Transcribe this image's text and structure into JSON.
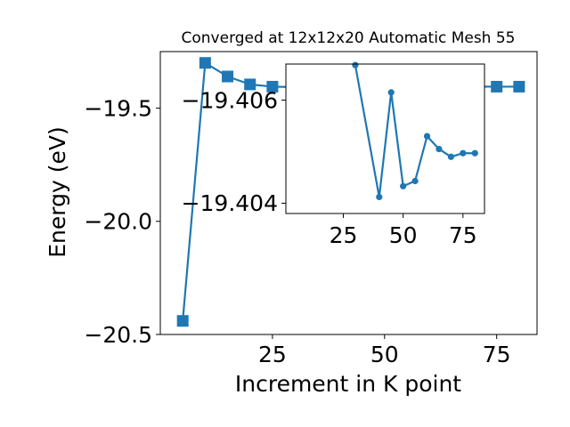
{
  "chart_data": [
    {
      "type": "line",
      "title": "Converged at 12x12x20 Automatic Mesh 55",
      "xlabel": "Increment in K point",
      "ylabel": "Energy (eV)",
      "xlim": [
        0,
        84
      ],
      "ylim": [
        -20.5,
        -19.25
      ],
      "xticks": [
        25,
        50,
        75
      ],
      "yticks": [
        -20.5,
        -20.0,
        -19.5
      ],
      "ytick_labels": [
        "−20.5",
        "−20.0",
        "−19.5"
      ],
      "grid": false,
      "marker": "square",
      "color": "#1f77b4",
      "series": [
        {
          "x": [
            5,
            10,
            15,
            20,
            25,
            30,
            35,
            40,
            45,
            50,
            55,
            60,
            65,
            70,
            75,
            80
          ],
          "y": [
            -20.44,
            -19.3,
            -19.36,
            -19.395,
            -19.405,
            -19.4066,
            -19.4066,
            -19.4041,
            -19.4061,
            -19.4043,
            -19.4044,
            -19.4053,
            -19.4051,
            -19.4049,
            -19.405,
            -19.405
          ]
        }
      ]
    },
    {
      "type": "line",
      "title": "",
      "xlabel": "",
      "ylabel": "",
      "xlim": [
        1,
        84
      ],
      "ylim": [
        -19.4038,
        -19.4067
      ],
      "xticks": [
        25,
        50,
        75
      ],
      "yticks": [
        -19.404,
        -19.406
      ],
      "ytick_labels": [
        "−19.404",
        "−19.406"
      ],
      "grid": false,
      "marker": "circle",
      "color": "#1f77b4",
      "series": [
        {
          "x": [
            30,
            40,
            45,
            50,
            55,
            60,
            65,
            70,
            75,
            80
          ],
          "y": [
            -19.40668,
            -19.40412,
            -19.40615,
            -19.40433,
            -19.40443,
            -19.4053,
            -19.40505,
            -19.4049,
            -19.40497,
            -19.40497
          ]
        }
      ]
    }
  ]
}
